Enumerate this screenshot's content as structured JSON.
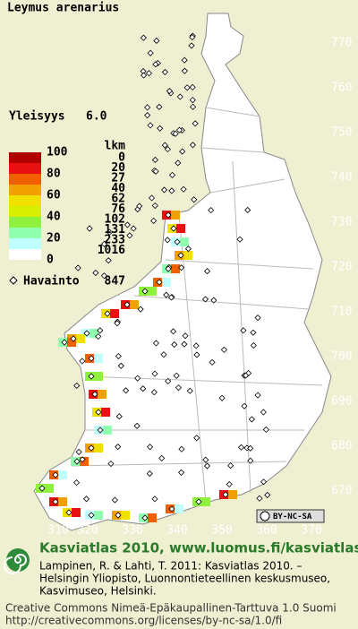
{
  "title": "Leymus arenarius",
  "frequency": {
    "label": "Yleisyys",
    "value": "6.0"
  },
  "legend": {
    "scale": [
      100,
      80,
      60,
      40,
      20,
      0
    ],
    "count_header": "lkm",
    "counts": [
      0,
      20,
      27,
      40,
      62,
      76,
      102,
      131,
      233,
      1016
    ],
    "observation": {
      "label": "Havainto",
      "count": 847
    }
  },
  "grid": {
    "north": [
      770,
      760,
      750,
      740,
      730,
      720,
      710,
      700,
      690,
      680,
      670
    ],
    "east": [
      310,
      320,
      330,
      340,
      350,
      360,
      370
    ]
  },
  "license_badge": "BY-NC-SA",
  "footer": {
    "heading": "Kasviatlas 2010, www.luomus.fi/kasviatlas",
    "citation": [
      "Lampinen, R. & Lahti, T. 2011: Kasviatlas 2010. –",
      "Helsingin Yliopisto, Luonnontieteellinen keskusmuseo,",
      "Kasvimuseo, Helsinki."
    ],
    "license": [
      "Creative Commons Nimeä-Epäkaupallinen-Tarttuva 1.0 Suomi",
      "http://creativecommons.org/licenses/by-nc-sa/1.0/fi"
    ]
  }
}
